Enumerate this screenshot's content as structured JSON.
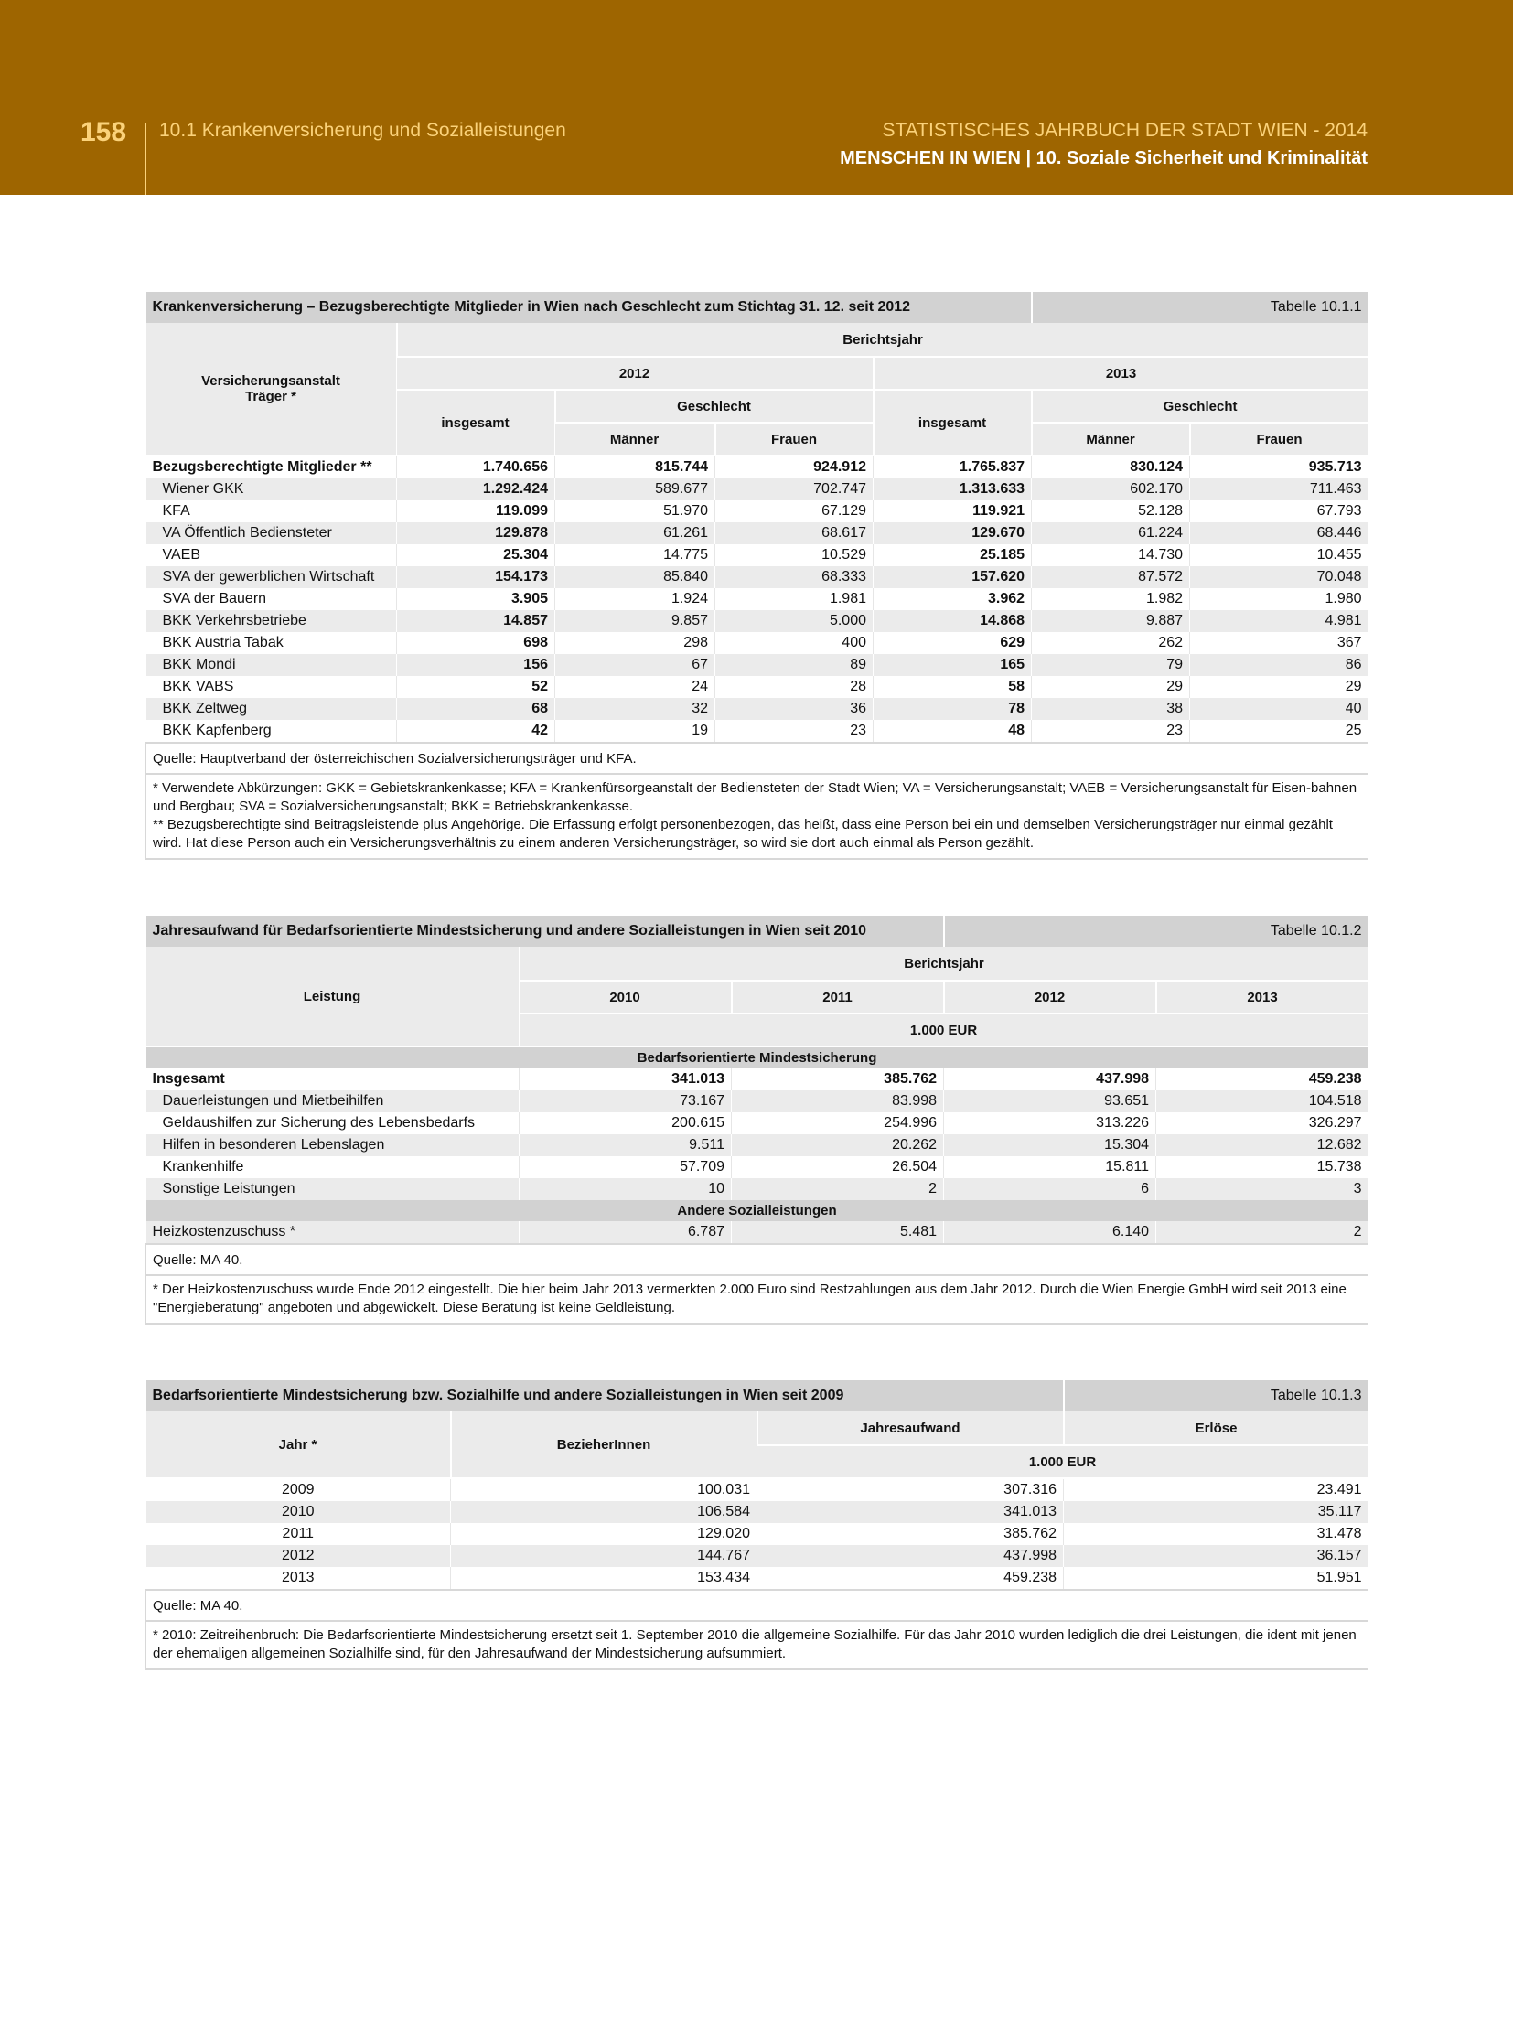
{
  "header": {
    "page_number": "158",
    "section": "10.1 Krankenversicherung und Sozialleistungen",
    "yearbook_title": "STATISTISCHES JAHRBUCH DER STADT WIEN - 2014",
    "chapter_main": "MENSCHEN IN WIEN",
    "chapter_sep": "|",
    "chapter": "10. Soziale Sicherheit und Kriminalität",
    "brand_color": "#9e6500"
  },
  "table1": {
    "title": "Krankenversicherung – Bezugsberechtigte Mitglieder in Wien nach Geschlecht zum Stichtag 31. 12. seit 2012",
    "number": "Tabelle 10.1.1",
    "col_label_1": "Versicherungsanstalt",
    "col_label_2": "Träger *",
    "berichtsjahr": "Berichtsjahr",
    "years": [
      "2012",
      "2013"
    ],
    "insgesamt": "insgesamt",
    "geschlecht": "Geschlecht",
    "maenner": "Männer",
    "frauen": "Frauen",
    "rows": [
      {
        "label": "Bezugsberechtigte Mitglieder **",
        "total": true,
        "values": [
          "1.740.656",
          "815.744",
          "924.912",
          "1.765.837",
          "830.124",
          "935.713"
        ]
      },
      {
        "label": "Wiener GKK",
        "values": [
          "1.292.424",
          "589.677",
          "702.747",
          "1.313.633",
          "602.170",
          "711.463"
        ]
      },
      {
        "label": "KFA",
        "values": [
          "119.099",
          "51.970",
          "67.129",
          "119.921",
          "52.128",
          "67.793"
        ]
      },
      {
        "label": "VA Öffentlich Bediensteter",
        "values": [
          "129.878",
          "61.261",
          "68.617",
          "129.670",
          "61.224",
          "68.446"
        ]
      },
      {
        "label": "VAEB",
        "values": [
          "25.304",
          "14.775",
          "10.529",
          "25.185",
          "14.730",
          "10.455"
        ]
      },
      {
        "label": "SVA der gewerblichen Wirtschaft",
        "values": [
          "154.173",
          "85.840",
          "68.333",
          "157.620",
          "87.572",
          "70.048"
        ]
      },
      {
        "label": "SVA der Bauern",
        "values": [
          "3.905",
          "1.924",
          "1.981",
          "3.962",
          "1.982",
          "1.980"
        ]
      },
      {
        "label": "BKK Verkehrsbetriebe",
        "values": [
          "14.857",
          "9.857",
          "5.000",
          "14.868",
          "9.887",
          "4.981"
        ]
      },
      {
        "label": "BKK Austria Tabak",
        "values": [
          "698",
          "298",
          "400",
          "629",
          "262",
          "367"
        ]
      },
      {
        "label": "BKK Mondi",
        "values": [
          "156",
          "67",
          "89",
          "165",
          "79",
          "86"
        ]
      },
      {
        "label": "BKK VABS",
        "values": [
          "52",
          "24",
          "28",
          "58",
          "29",
          "29"
        ]
      },
      {
        "label": "BKK Zeltweg",
        "values": [
          "68",
          "32",
          "36",
          "78",
          "38",
          "40"
        ]
      },
      {
        "label": "BKK Kapfenberg",
        "values": [
          "42",
          "19",
          "23",
          "48",
          "23",
          "25"
        ]
      }
    ],
    "source": "Quelle: Hauptverband der österreichischen Sozialversicherungsträger und KFA.",
    "note_1": "* Verwendete Abkürzungen: GKK = Gebietskrankenkasse; KFA = Krankenfürsorgeanstalt der Bediensteten der Stadt Wien; VA = Versicherungsanstalt; VAEB = Versicherungsanstalt für Eisen-bahnen und Bergbau; SVA = Sozialversicherungsanstalt; BKK = Betriebskrankenkasse.",
    "note_2": "** Bezugsberechtigte sind Beitragsleistende plus Angehörige. Die Erfassung erfolgt personenbezogen, das heißt, dass eine Person bei ein und demselben Versicherungsträger nur einmal gezählt wird. Hat diese Person auch ein Versicherungsverhältnis zu einem anderen Versicherungsträger, so wird sie dort auch einmal als Person gezählt."
  },
  "table2": {
    "title": "Jahresaufwand für Bedarfsorientierte Mindestsicherung und andere Sozialleistungen in Wien seit 2010",
    "number": "Tabelle 10.1.2",
    "col_label": "Leistung",
    "berichtsjahr": "Berichtsjahr",
    "years": [
      "2010",
      "2011",
      "2012",
      "2013"
    ],
    "unit": "1.000 EUR",
    "section_1": "Bedarfsorientierte Mindestsicherung",
    "rows_1": [
      {
        "label": "Insgesamt",
        "total": true,
        "values": [
          "341.013",
          "385.762",
          "437.998",
          "459.238"
        ]
      },
      {
        "label": "Dauerleistungen und Mietbeihilfen",
        "values": [
          "73.167",
          "83.998",
          "93.651",
          "104.518"
        ]
      },
      {
        "label": "Geldaushilfen zur Sicherung des Lebensbedarfs",
        "values": [
          "200.615",
          "254.996",
          "313.226",
          "326.297"
        ]
      },
      {
        "label": "Hilfen in besonderen Lebenslagen",
        "values": [
          "9.511",
          "20.262",
          "15.304",
          "12.682"
        ]
      },
      {
        "label": "Krankenhilfe",
        "values": [
          "57.709",
          "26.504",
          "15.811",
          "15.738"
        ]
      },
      {
        "label": "Sonstige Leistungen",
        "values": [
          "10",
          "2",
          "6",
          "3"
        ]
      }
    ],
    "section_2": "Andere Sozialleistungen",
    "rows_2": [
      {
        "label": "Heizkostenzuschuss *",
        "values": [
          "6.787",
          "5.481",
          "6.140",
          "2"
        ]
      }
    ],
    "source": "Quelle: MA 40.",
    "note": "* Der Heizkostenzuschuss wurde Ende 2012 eingestellt. Die hier beim Jahr 2013 vermerkten 2.000 Euro sind Restzahlungen aus dem Jahr 2012. Durch die Wien Energie GmbH wird seit 2013 eine \"Energieberatung\" angeboten und abgewickelt. Diese Beratung ist keine Geldleistung."
  },
  "table3": {
    "title": "Bedarfsorientierte Mindestsicherung bzw. Sozialhilfe und andere Sozialleistungen in Wien seit 2009",
    "number": "Tabelle 10.1.3",
    "col_year": "Jahr *",
    "col_recipients": "BezieherInnen",
    "col_expense": "Jahresaufwand",
    "col_revenue": "Erlöse",
    "unit": "1.000 EUR",
    "rows": [
      {
        "year": "2009",
        "values": [
          "100.031",
          "307.316",
          "23.491"
        ]
      },
      {
        "year": "2010",
        "values": [
          "106.584",
          "341.013",
          "35.117"
        ]
      },
      {
        "year": "2011",
        "values": [
          "129.020",
          "385.762",
          "31.478"
        ]
      },
      {
        "year": "2012",
        "values": [
          "144.767",
          "437.998",
          "36.157"
        ]
      },
      {
        "year": "2013",
        "values": [
          "153.434",
          "459.238",
          "51.951"
        ]
      }
    ],
    "source": "Quelle: MA 40.",
    "note": "* 2010: Zeitreihenbruch: Die Bedarfsorientierte Mindestsicherung ersetzt seit 1. September 2010 die allgemeine Sozialhilfe. Für das Jahr 2010 wurden lediglich die drei Leistungen, die ident mit jenen der ehemaligen allgemeinen Sozialhilfe sind, für den Jahresaufwand der Mindestsicherung aufsummiert."
  }
}
